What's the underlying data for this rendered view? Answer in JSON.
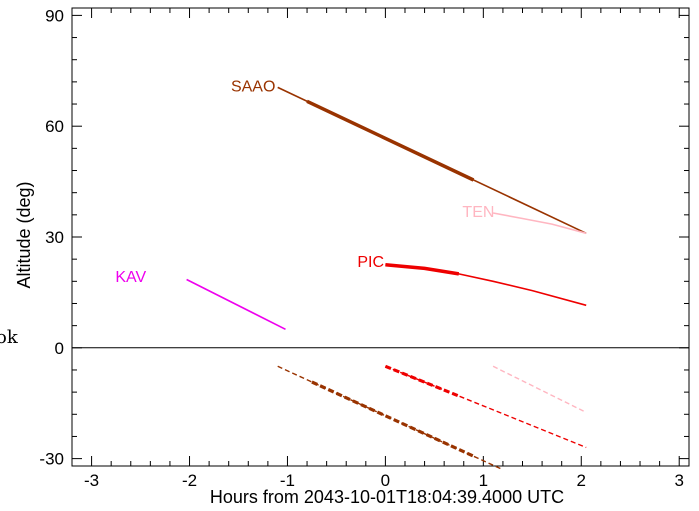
{
  "chart_data": {
    "type": "line",
    "title": "",
    "xlabel": "Hours from 2043-10-01T18:04:39.4000 UTC",
    "ylabel": "Altitude (deg)",
    "xlim": [
      -3.2,
      3.1
    ],
    "ylim": [
      -32,
      92
    ],
    "xticks": [
      -3,
      -2,
      -1,
      0,
      1,
      2,
      3
    ],
    "yticks": [
      -30,
      0,
      30,
      60,
      90
    ],
    "grid": false,
    "zero_line": true,
    "side_text": "ok",
    "series": [
      {
        "name": "SAAO",
        "color": "#993300",
        "label_at": [
          -1.35,
          71
        ],
        "x": [
          -1.1,
          2.05
        ],
        "y": [
          70.5,
          31
        ],
        "thick_range": [
          -0.8,
          0.9
        ],
        "below_horizon": {
          "x": [
            -1.1,
            1.2
          ],
          "y": [
            -5,
            -33
          ],
          "thick_range": [
            -0.75,
            0.9
          ]
        }
      },
      {
        "name": "TEN",
        "color": "#ffb6c1",
        "label_at": [
          0.95,
          37
        ],
        "x": [
          1.1,
          1.4,
          1.7,
          2.05
        ],
        "y": [
          36.5,
          35.0,
          33.5,
          31.0
        ],
        "thick_range": null,
        "below_horizon": {
          "x": [
            1.1,
            2.05
          ],
          "y": [
            -5,
            -17.5
          ],
          "thick_range": null
        }
      },
      {
        "name": "PIC",
        "color": "#ee0000",
        "label_at": [
          -0.15,
          23.5
        ],
        "x": [
          0,
          0.4,
          0.75,
          1.1,
          1.5,
          2.05
        ],
        "y": [
          22.5,
          21.5,
          20.0,
          18.0,
          15.5,
          11.5
        ],
        "thick_range": [
          0,
          0.75
        ],
        "below_horizon": {
          "x": [
            0,
            2.05
          ],
          "y": [
            -5,
            -27
          ],
          "thick_range": [
            0,
            0.75
          ]
        }
      },
      {
        "name": "KAV",
        "color": "#ee00ee",
        "label_at": [
          -2.6,
          19.5
        ],
        "x": [
          -2.03,
          -1.02
        ],
        "y": [
          18.5,
          5
        ],
        "thick_range": null,
        "below_horizon": null
      }
    ]
  }
}
